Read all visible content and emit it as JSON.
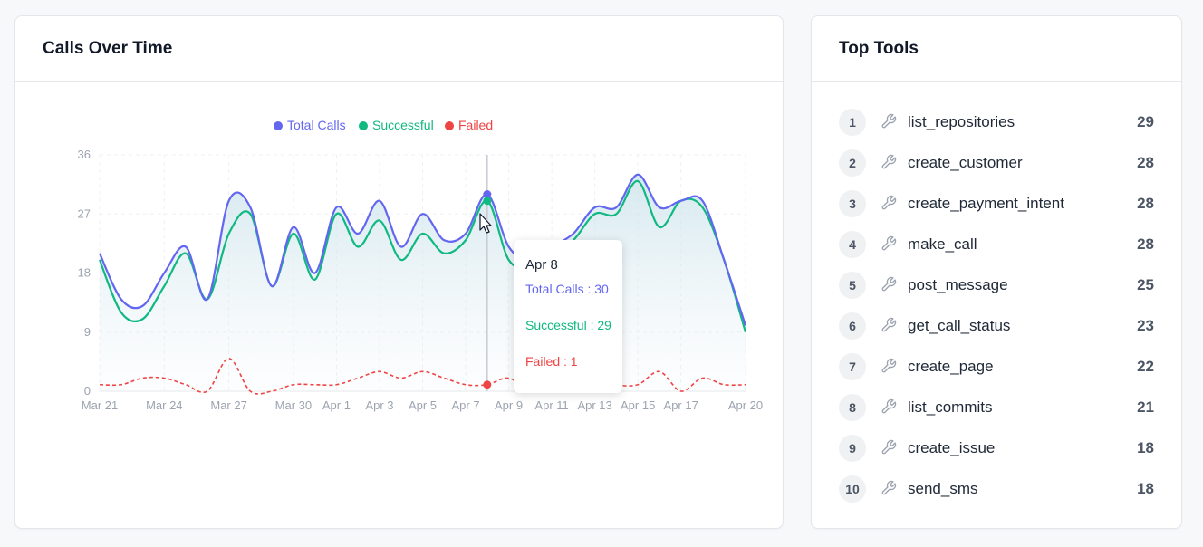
{
  "calls_panel": {
    "title": "Calls Over Time"
  },
  "tools_panel": {
    "title": "Top Tools",
    "items": [
      {
        "rank": "1",
        "name": "list_repositories",
        "count": "29"
      },
      {
        "rank": "2",
        "name": "create_customer",
        "count": "28"
      },
      {
        "rank": "3",
        "name": "create_payment_intent",
        "count": "28"
      },
      {
        "rank": "4",
        "name": "make_call",
        "count": "28"
      },
      {
        "rank": "5",
        "name": "post_message",
        "count": "25"
      },
      {
        "rank": "6",
        "name": "get_call_status",
        "count": "23"
      },
      {
        "rank": "7",
        "name": "create_page",
        "count": "22"
      },
      {
        "rank": "8",
        "name": "list_commits",
        "count": "21"
      },
      {
        "rank": "9",
        "name": "create_issue",
        "count": "18"
      },
      {
        "rank": "10",
        "name": "send_sms",
        "count": "18"
      }
    ]
  },
  "tooltip": {
    "date": "Apr 8",
    "total": "Total Calls : 30",
    "successful": "Successful : 29",
    "failed": "Failed : 1"
  },
  "chart_data": {
    "type": "line",
    "ylim": [
      0,
      36
    ],
    "yticks": [
      0,
      9,
      18,
      27,
      36
    ],
    "tick_labels": [
      "Mar 21",
      "Mar 24",
      "Mar 27",
      "Mar 30",
      "Apr 1",
      "Apr 3",
      "Apr 5",
      "Apr 7",
      "Apr 9",
      "Apr 11",
      "Apr 13",
      "Apr 15",
      "Apr 17",
      "Apr 20"
    ],
    "tick_days": [
      0,
      3,
      6,
      9,
      11,
      13,
      15,
      17,
      19,
      21,
      23,
      25,
      27,
      30
    ],
    "highlight_day": 18,
    "grid": true,
    "legend_position": "top-center",
    "series": [
      {
        "name": "Total Calls",
        "color": "#6366f1",
        "values": [
          21,
          14,
          13,
          18,
          22,
          14,
          29,
          28,
          16,
          25,
          18,
          28,
          24,
          29,
          22,
          27,
          23,
          24,
          30,
          22,
          20,
          22,
          24,
          28,
          28,
          33,
          28,
          29,
          29,
          20,
          10
        ]
      },
      {
        "name": "Successful",
        "color": "#10b981",
        "values": [
          20,
          12,
          11,
          16,
          21,
          14,
          24,
          27,
          16,
          24,
          17,
          27,
          22,
          26,
          20,
          24,
          21,
          23,
          29,
          20,
          19,
          21,
          23,
          27,
          27,
          32,
          25,
          29,
          28,
          20,
          9
        ]
      },
      {
        "name": "Failed",
        "color": "#ef4444",
        "values": [
          1,
          1,
          2,
          2,
          1,
          0,
          5,
          0,
          0,
          1,
          1,
          1,
          2,
          3,
          2,
          3,
          2,
          1,
          1,
          2,
          0,
          0,
          0,
          2,
          1,
          1,
          3,
          0,
          2,
          1,
          1
        ]
      }
    ]
  }
}
